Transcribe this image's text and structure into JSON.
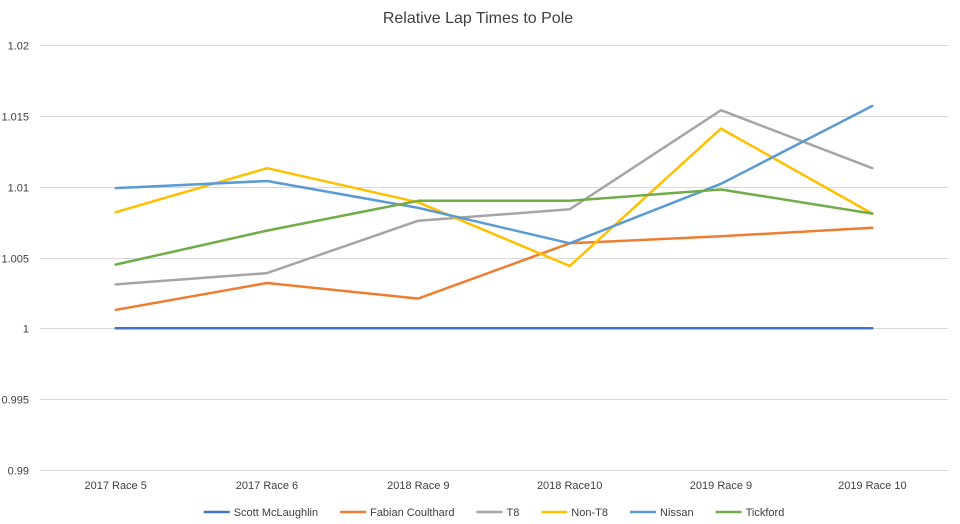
{
  "chart_data": {
    "type": "line",
    "title": "Relative Lap Times to Pole",
    "xlabel": "",
    "ylabel": "",
    "categories": [
      "2017 Race 5",
      "2017 Race 6",
      "2018 Race 9",
      "2018 Race10",
      "2019 Race 9",
      "2019 Race 10"
    ],
    "ylim": [
      0.99,
      1.02
    ],
    "yticks": [
      0.99,
      0.995,
      1,
      1.005,
      1.01,
      1.015,
      1.02
    ],
    "ytick_labels": [
      "0.99",
      "0.995",
      "1",
      "1.005",
      "1.01",
      "1.015",
      "1.02"
    ],
    "grid": "horizontal",
    "legend_position": "bottom",
    "series": [
      {
        "name": "Scott McLaughlin",
        "color": "#4472C4",
        "values": [
          1.0,
          1.0,
          1.0,
          1.0,
          1.0,
          1.0
        ]
      },
      {
        "name": "Fabian Coulthard",
        "color": "#ED7D31",
        "values": [
          1.0013,
          1.0032,
          1.0021,
          1.006,
          1.0065,
          1.0071
        ]
      },
      {
        "name": "T8",
        "color": "#A5A5A5",
        "values": [
          1.0031,
          1.0039,
          1.0076,
          1.0084,
          1.0154,
          1.0113
        ]
      },
      {
        "name": "Non-T8",
        "color": "#FFC000",
        "values": [
          1.0082,
          1.0113,
          1.0089,
          1.0044,
          1.0141,
          1.0081
        ]
      },
      {
        "name": "Nissan",
        "color": "#5B9BD5",
        "values": [
          1.0099,
          1.0104,
          1.0085,
          1.006,
          1.0102,
          1.0157
        ]
      },
      {
        "name": "Tickford",
        "color": "#70AD47",
        "values": [
          1.0045,
          1.0069,
          1.009,
          1.009,
          1.0098,
          1.0081
        ]
      }
    ]
  }
}
